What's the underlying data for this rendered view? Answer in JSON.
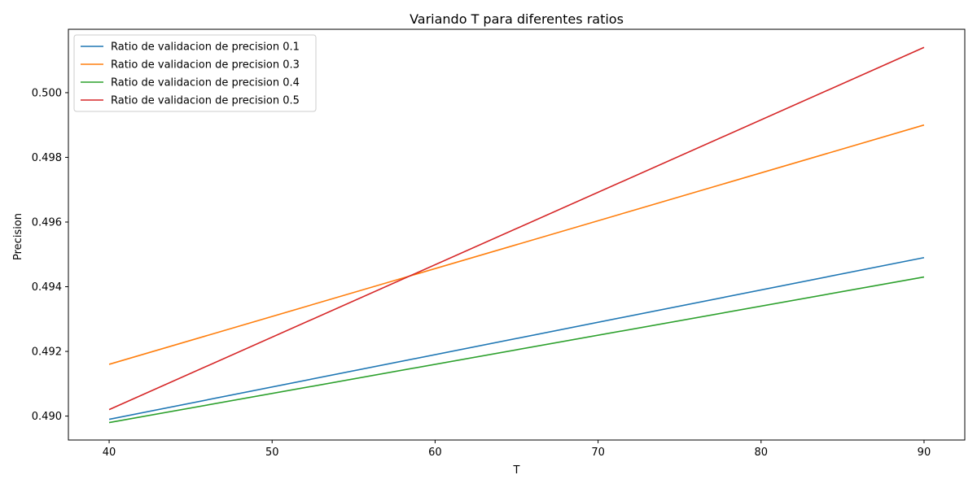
{
  "chart_data": {
    "type": "line",
    "title": "Variando T para diferentes ratios",
    "xlabel": "T",
    "ylabel": "Precision",
    "xlim": [
      37.5,
      92.5
    ],
    "ylim": [
      0.48926,
      0.50196
    ],
    "xticks": [
      40,
      50,
      60,
      70,
      80,
      90
    ],
    "yticks": [
      0.49,
      0.492,
      0.494,
      0.496,
      0.498,
      0.5
    ],
    "ytick_labels": [
      "0.490",
      "0.492",
      "0.494",
      "0.496",
      "0.498",
      "0.500"
    ],
    "grid": false,
    "legend_position": "upper-left",
    "x": [
      40,
      90
    ],
    "series": [
      {
        "name": "Ratio de validacion de precision 0.1",
        "color": "#1f77b4",
        "values": [
          0.4899,
          0.4949
        ]
      },
      {
        "name": "Ratio de validacion de precision 0.3",
        "color": "#ff7f0e",
        "values": [
          0.4916,
          0.499
        ]
      },
      {
        "name": "Ratio de validacion de precision 0.4",
        "color": "#2ca02c",
        "values": [
          0.4898,
          0.4943
        ]
      },
      {
        "name": "Ratio de validacion de precision 0.5",
        "color": "#d62728",
        "values": [
          0.4902,
          0.5014
        ]
      }
    ]
  }
}
